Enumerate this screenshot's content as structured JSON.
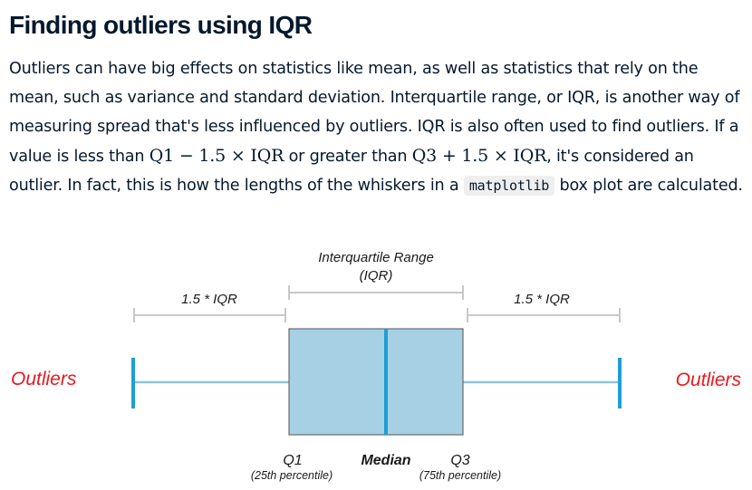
{
  "heading": "Finding outliers using IQR",
  "paragraph": {
    "p1": "Outliers can have big effects on statistics like mean, as well as statistics that rely on the mean, such as variance and standard deviation. Interquartile range, or IQR, is another way of measuring spread that's less influenced by outliers. IQR is also often used to find outliers. If a value is less than ",
    "math1": "Q1 − 1.5 × IQR",
    "p2": " or greater than ",
    "math2": "Q3 + 1.5 × IQR",
    "p3": ", it's considered an outlier. In fact, this is how the lengths of the whiskers in a ",
    "code": "matplotlib",
    "p4": " box plot are calculated."
  },
  "diagram": {
    "iqr_label_line1": "Interquartile Range",
    "iqr_label_line2": "(IQR)",
    "left_whisker_label": "1.5 * IQR",
    "right_whisker_label": "1.5 * IQR",
    "outliers_left": "Outliers",
    "outliers_right": "Outliers",
    "q1_label": "Q1",
    "q1_sub": "(25th percentile)",
    "median_label": "Median",
    "q3_label": "Q3",
    "q3_sub": "(75th percentile)",
    "colors": {
      "box_fill": "#a6d0e4",
      "median_line": "#1f9ed6",
      "whisker_line": "#8fc3dc",
      "whisker_cap": "#1f9ed6",
      "bracket": "#c8c8c8",
      "outliers_text": "#e8191f"
    }
  }
}
